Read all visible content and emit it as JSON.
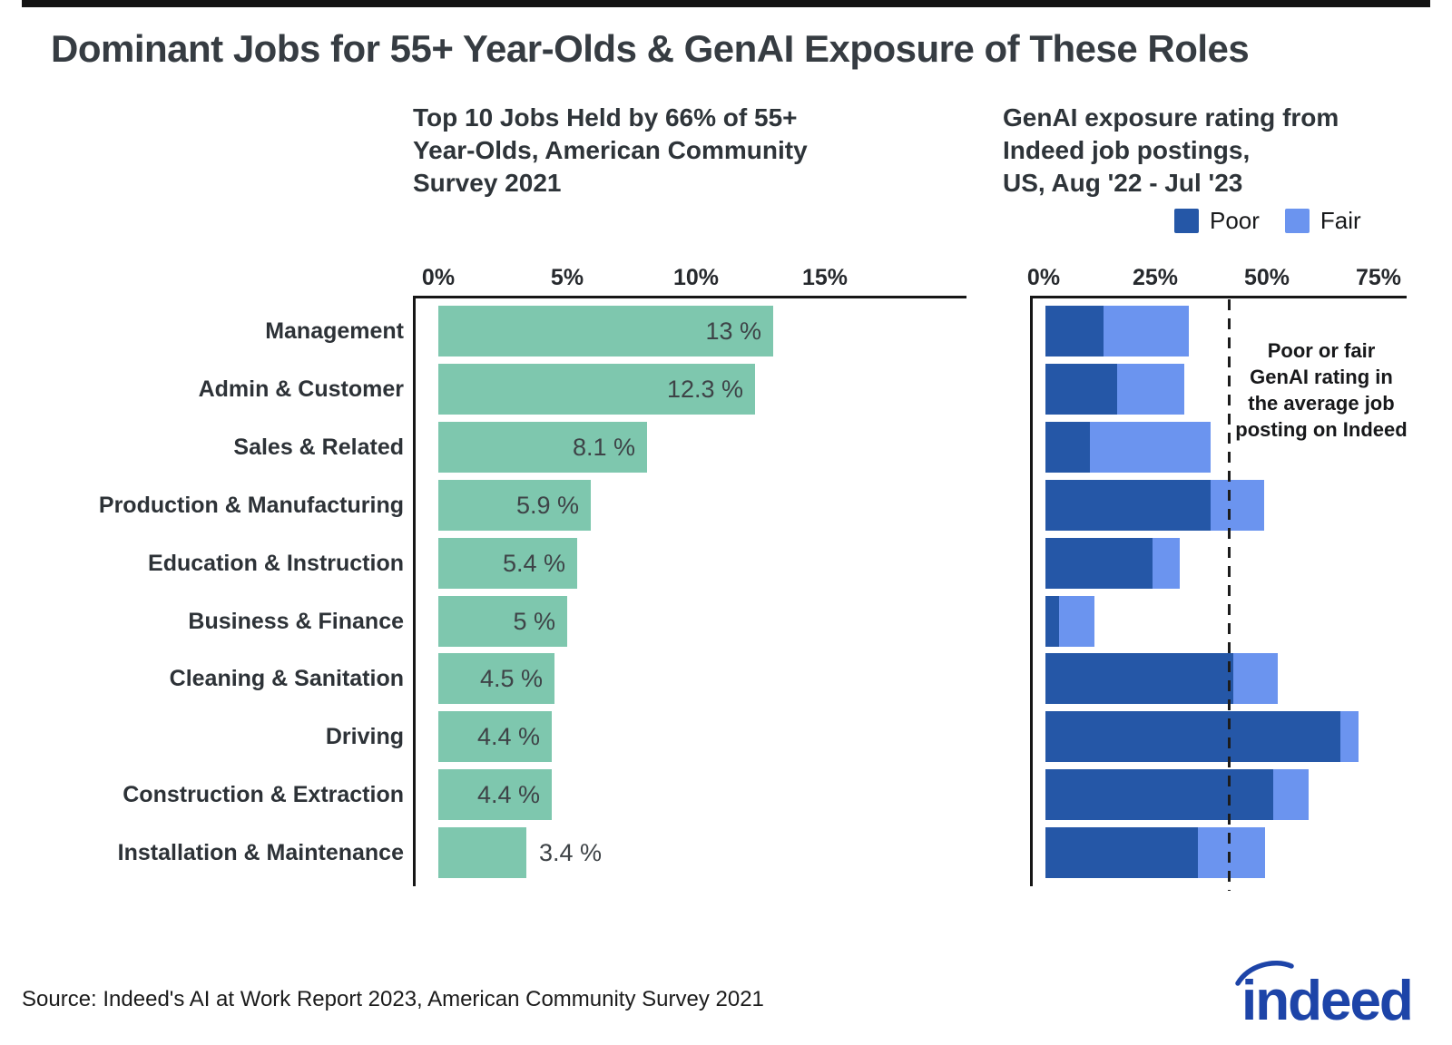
{
  "title": "Dominant Jobs for 55+ Year-Olds & GenAI Exposure of These Roles",
  "left_chart": {
    "subtitle": "Top 10 Jobs Held by 66% of 55+\nYear-Olds, American Community\nSurvey 2021"
  },
  "right_chart": {
    "title": "GenAI exposure rating from\nIndeed job postings,\nUS, Aug '22 - Jul '23",
    "legend": [
      {
        "label": "Poor",
        "color": "#2557A7"
      },
      {
        "label": "Fair",
        "color": "#6B94EF"
      }
    ],
    "annotation": "Poor or fair\nGenAI rating in\nthe average job\nposting on Indeed"
  },
  "footer": {
    "source": "Source: Indeed's AI at Work Report 2023, American Community Survey 2021",
    "logo_text": "indeed"
  },
  "colors": {
    "teal": "#7EC7AE",
    "poor": "#2557A7",
    "fair": "#6B94EF",
    "axis": "#161616",
    "logo_blue": "#1D44A8"
  },
  "chart_data": [
    {
      "type": "bar",
      "orientation": "horizontal",
      "title": "Top 10 Jobs Held by 66% of 55+ Year-Olds, American Community Survey 2021",
      "categories": [
        "Management",
        "Admin & Customer",
        "Sales & Related",
        "Production & Manufacturing",
        "Education & Instruction",
        "Business & Finance",
        "Cleaning & Sanitation",
        "Driving",
        "Construction & Extraction",
        "Installation & Maintenance"
      ],
      "values": [
        13,
        12.3,
        8.1,
        5.9,
        5.4,
        5,
        4.5,
        4.4,
        4.4,
        3.4
      ],
      "value_labels": [
        "13 %",
        "12.3 %",
        "8.1 %",
        "5.9 %",
        "5.4 %",
        "5 %",
        "4.5 %",
        "4.4 %",
        "4.4 %",
        "3.4 %"
      ],
      "x_tick_labels": [
        "0%",
        "5%",
        "10%",
        "15%"
      ],
      "x_tick_values": [
        0,
        5,
        10,
        15
      ],
      "xlim": [
        0,
        20
      ],
      "bar_color": "#7EC7AE",
      "grid": false
    },
    {
      "type": "bar",
      "subtype": "stacked",
      "orientation": "horizontal",
      "title": "GenAI exposure rating from Indeed job postings, US, Aug '22 - Jul '23",
      "categories": [
        "Management",
        "Admin & Customer",
        "Sales & Related",
        "Production & Manufacturing",
        "Education & Instruction",
        "Business & Finance",
        "Cleaning & Sanitation",
        "Driving",
        "Construction & Extraction",
        "Installation & Maintenance"
      ],
      "series": [
        {
          "name": "Poor",
          "color": "#2557A7",
          "values": [
            13,
            16,
            10,
            37,
            24,
            3,
            42,
            66,
            51,
            34
          ]
        },
        {
          "name": "Fair",
          "color": "#6B94EF",
          "values": [
            19,
            15,
            27,
            12,
            6,
            8,
            10,
            4,
            8,
            15
          ]
        }
      ],
      "x_tick_labels": [
        "0%",
        "25%",
        "50%",
        "75%"
      ],
      "x_tick_values": [
        0,
        25,
        50,
        75
      ],
      "xlim": [
        0,
        80
      ],
      "reference_line_pct": 41,
      "reference_line_style": "dashed",
      "annotation": "Poor or fair GenAI rating in the average job posting on Indeed",
      "legend_position": "top-right",
      "grid": false
    }
  ]
}
